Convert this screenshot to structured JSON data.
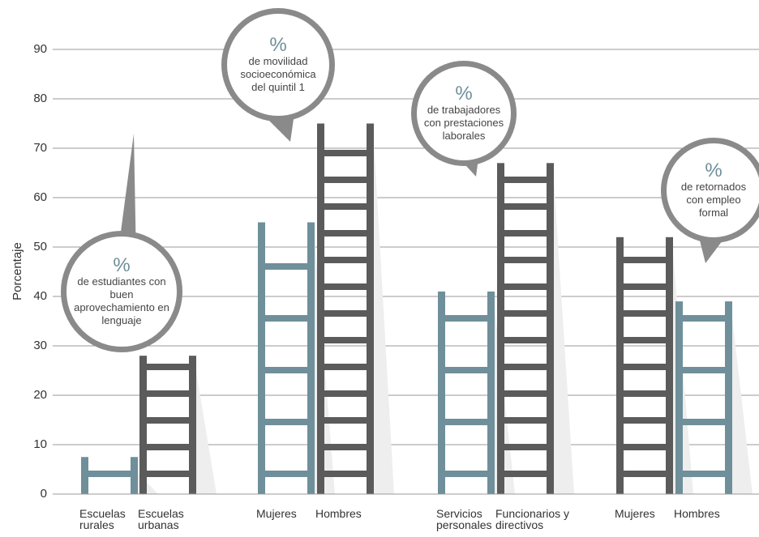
{
  "chart_data": {
    "type": "ladder",
    "y_label": "Porcentaje",
    "categories": [
      "Escuelas rurales",
      "Escuelas urbanas",
      "Mujeres",
      "Hombres",
      "Servicios personales",
      "Funcionarios y directivos",
      "Mujeres",
      "Hombres"
    ],
    "values": [
      7.5,
      28,
      55,
      75,
      41,
      67,
      52,
      39
    ],
    "colors": [
      "#6f8f9a",
      "#5b5b5b",
      "#6f8f9a",
      "#5b5b5b",
      "#6f8f9a",
      "#5b5b5b",
      "#5b5b5b",
      "#6f8f9a"
    ],
    "ylim": [
      0,
      90
    ],
    "yticks": [
      0,
      10,
      20,
      30,
      40,
      50,
      60,
      70,
      80,
      90
    ],
    "grid": true,
    "annotations": [
      {
        "symbol": "%",
        "text": "de estudiantes con buen aprovechamiento en lenguaje"
      },
      {
        "symbol": "%",
        "text": "de movilidad socioeconómica del quintil 1"
      },
      {
        "symbol": "%",
        "text": "de trabajadores con prestaciones laborales"
      },
      {
        "symbol": "%",
        "text": "de retornados con empleo formal"
      }
    ]
  }
}
